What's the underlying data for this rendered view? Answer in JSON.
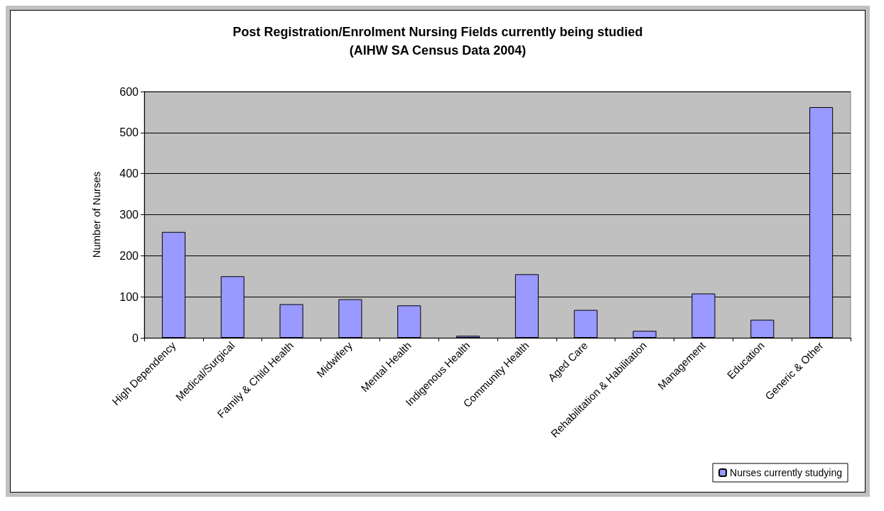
{
  "chart_data": {
    "type": "bar",
    "title": "Post Registration/Enrolment Nursing Fields currently being studied\n(AIHW SA Census Data 2004)",
    "ylabel": "Number of Nurses",
    "categories": [
      "High Dependency",
      "Medical/Surgical",
      "Family & Child Health",
      "Midwifery",
      "Mental Health",
      "Indigenous Health",
      "Community Health",
      "Aged Care",
      "Rehabilitation & Habilitation",
      "Management",
      "Education",
      "Generic & Other"
    ],
    "series": [
      {
        "name": "Nurses currently studying",
        "color": "#9999ff",
        "values": [
          258,
          150,
          82,
          94,
          79,
          5,
          155,
          68,
          17,
          108,
          44,
          562
        ]
      }
    ],
    "ylim": [
      0,
      600
    ],
    "yticks": [
      0,
      100,
      200,
      300,
      400,
      500,
      600
    ],
    "grid": "y",
    "legend": "bottom right"
  }
}
